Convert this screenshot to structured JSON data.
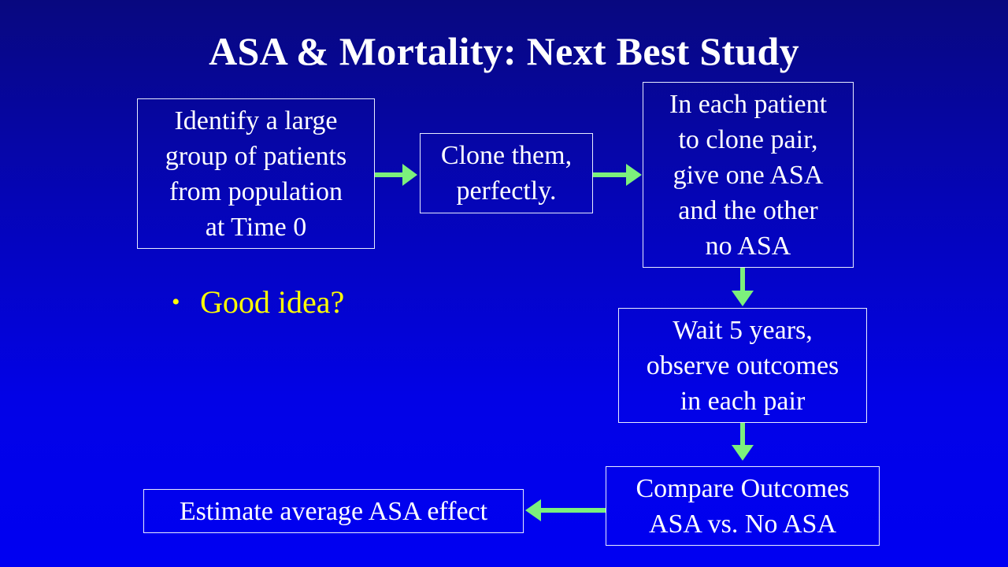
{
  "slide": {
    "title": "ASA & Mortality: Next Best Study"
  },
  "flowchart": {
    "step1": {
      "lines": [
        "Identify a large",
        "group of patients",
        "from population",
        "at Time 0"
      ]
    },
    "step2": {
      "lines": [
        "Clone them,",
        "perfectly."
      ]
    },
    "step3": {
      "lines": [
        "In each patient",
        "to clone pair,",
        "give one ASA",
        "and the other",
        "no ASA"
      ]
    },
    "step4": {
      "lines": [
        "Wait 5 years,",
        "observe outcomes",
        "in each pair"
      ]
    },
    "step5": {
      "lines": [
        "Compare Outcomes",
        "ASA vs. No ASA"
      ]
    },
    "step6": {
      "lines": [
        "Estimate average ASA effect"
      ]
    }
  },
  "bullet": {
    "symbol": "•",
    "text": "Good idea?"
  },
  "colors": {
    "background_top": "#08087f",
    "background_bottom": "#0000f2",
    "arrow": "#7cf07c",
    "bullet_text": "#ffff00",
    "text": "#ffffff"
  }
}
